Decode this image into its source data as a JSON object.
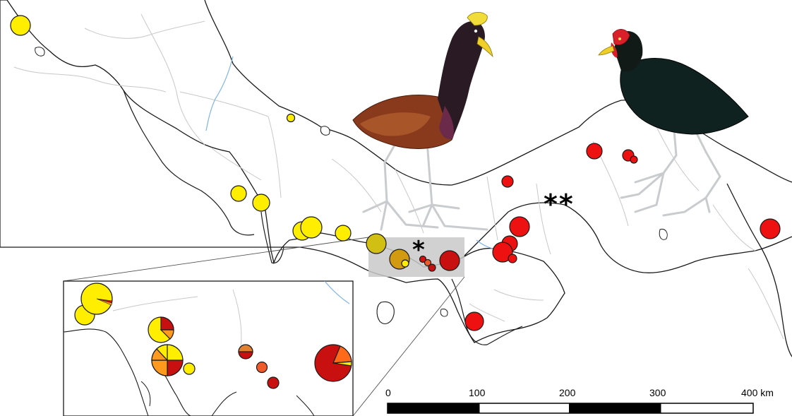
{
  "colors": {
    "yellow": "#ffee00",
    "orange": "#ff9a1f",
    "red": "#ee1111",
    "darkred": "#c81010",
    "olive": "#d1bf14",
    "ochre": "#d29a10",
    "land_stroke": "#1a1a1a",
    "border_stroke": "#c8c8c8",
    "river": "#7fb4e6",
    "highlight_box": "#c9c9c9"
  },
  "species": {
    "left_bird": "Northern Jacana (Jacana spinosa)",
    "right_bird": "Wattled Jacana (Jacana jacana)"
  },
  "markers": {
    "single": "*",
    "double": "**"
  },
  "scale_bar": {
    "labels": [
      "0",
      "100",
      "200",
      "300",
      "400 km"
    ]
  }
}
